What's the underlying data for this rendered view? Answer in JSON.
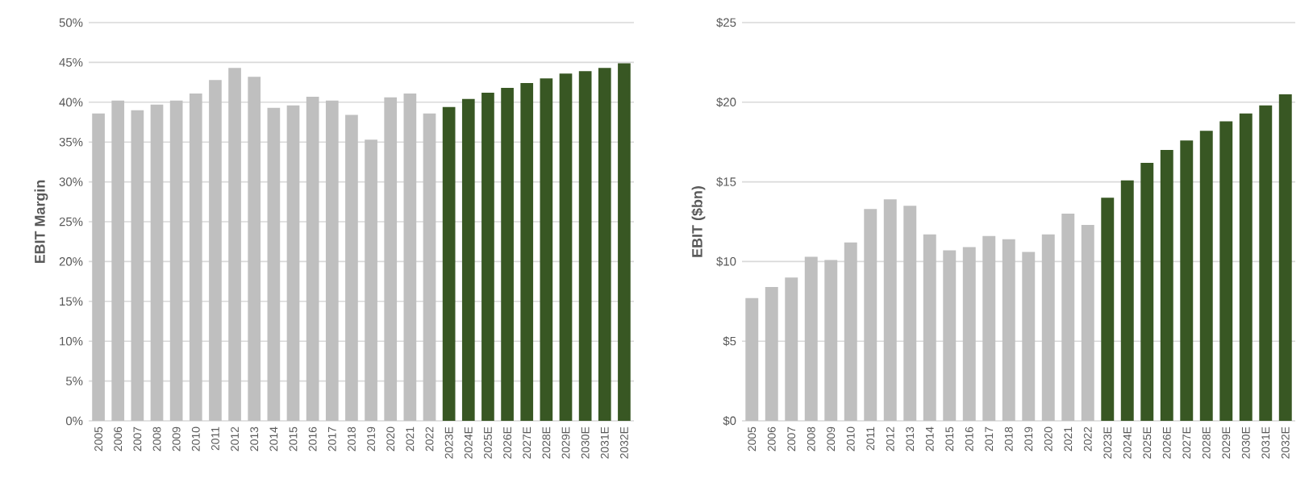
{
  "chart_data": [
    {
      "type": "bar",
      "ylabel": "EBIT Margin",
      "grid": "y",
      "categories": [
        "2005",
        "2006",
        "2007",
        "2008",
        "2009",
        "2010",
        "2011",
        "2012",
        "2013",
        "2014",
        "2015",
        "2016",
        "2017",
        "2018",
        "2019",
        "2020",
        "2021",
        "2022",
        "2023E",
        "2024E",
        "2025E",
        "2026E",
        "2027E",
        "2028E",
        "2029E",
        "2030E",
        "2031E",
        "2032E"
      ],
      "values": [
        38.6,
        40.2,
        39.0,
        39.7,
        40.2,
        41.1,
        42.8,
        44.3,
        43.2,
        39.3,
        39.6,
        40.7,
        40.2,
        38.4,
        35.3,
        40.6,
        41.1,
        38.6,
        39.4,
        40.4,
        41.2,
        41.8,
        42.4,
        43.0,
        43.6,
        43.9,
        44.3,
        44.9
      ],
      "colors": [
        "#bfbfbf",
        "#bfbfbf",
        "#bfbfbf",
        "#bfbfbf",
        "#bfbfbf",
        "#bfbfbf",
        "#bfbfbf",
        "#bfbfbf",
        "#bfbfbf",
        "#bfbfbf",
        "#bfbfbf",
        "#bfbfbf",
        "#bfbfbf",
        "#bfbfbf",
        "#bfbfbf",
        "#bfbfbf",
        "#bfbfbf",
        "#bfbfbf",
        "#385723",
        "#385723",
        "#385723",
        "#385723",
        "#385723",
        "#385723",
        "#385723",
        "#385723",
        "#385723",
        "#385723"
      ],
      "ylim": [
        0,
        50
      ],
      "yticks": [
        {
          "value": 0,
          "label": "0%"
        },
        {
          "value": 5,
          "label": "5%"
        },
        {
          "value": 10,
          "label": "10%"
        },
        {
          "value": 15,
          "label": "15%"
        },
        {
          "value": 20,
          "label": "20%"
        },
        {
          "value": 25,
          "label": "25%"
        },
        {
          "value": 30,
          "label": "30%"
        },
        {
          "value": 35,
          "label": "35%"
        },
        {
          "value": 40,
          "label": "40%"
        },
        {
          "value": 45,
          "label": "45%"
        },
        {
          "value": 50,
          "label": "50%"
        }
      ]
    },
    {
      "type": "bar",
      "ylabel": "EBIT ($bn)",
      "grid": "y",
      "categories": [
        "2005",
        "2006",
        "2007",
        "2008",
        "2009",
        "2010",
        "2011",
        "2012",
        "2013",
        "2014",
        "2015",
        "2016",
        "2017",
        "2018",
        "2019",
        "2020",
        "2021",
        "2022",
        "2023E",
        "2024E",
        "2025E",
        "2026E",
        "2027E",
        "2028E",
        "2029E",
        "2030E",
        "2031E",
        "2032E"
      ],
      "values": [
        7.7,
        8.4,
        9.0,
        10.3,
        10.1,
        11.2,
        13.3,
        13.9,
        13.5,
        11.7,
        10.7,
        10.9,
        11.6,
        11.4,
        10.6,
        11.7,
        13.0,
        12.3,
        14.0,
        15.1,
        16.2,
        17.0,
        17.6,
        18.2,
        18.8,
        19.3,
        19.8,
        20.5
      ],
      "colors": [
        "#bfbfbf",
        "#bfbfbf",
        "#bfbfbf",
        "#bfbfbf",
        "#bfbfbf",
        "#bfbfbf",
        "#bfbfbf",
        "#bfbfbf",
        "#bfbfbf",
        "#bfbfbf",
        "#bfbfbf",
        "#bfbfbf",
        "#bfbfbf",
        "#bfbfbf",
        "#bfbfbf",
        "#bfbfbf",
        "#bfbfbf",
        "#bfbfbf",
        "#385723",
        "#385723",
        "#385723",
        "#385723",
        "#385723",
        "#385723",
        "#385723",
        "#385723",
        "#385723",
        "#385723"
      ],
      "ylim": [
        0,
        25
      ],
      "yticks": [
        {
          "value": 0,
          "label": "$0"
        },
        {
          "value": 5,
          "label": "$5"
        },
        {
          "value": 10,
          "label": "$10"
        },
        {
          "value": 15,
          "label": "$15"
        },
        {
          "value": 20,
          "label": "$20"
        },
        {
          "value": 25,
          "label": "$25"
        }
      ]
    }
  ]
}
